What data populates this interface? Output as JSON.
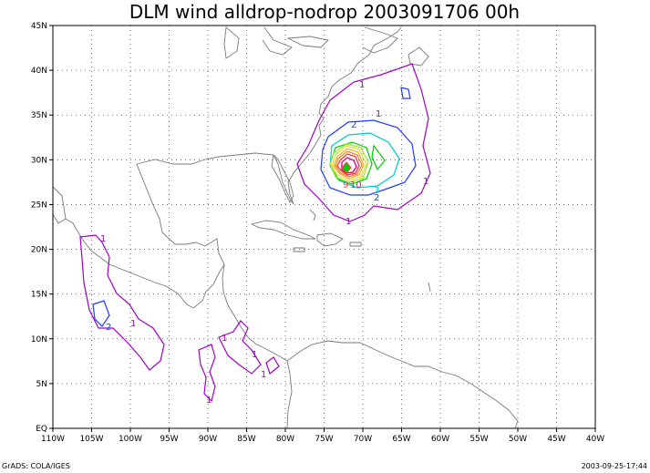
{
  "title": "DLM wind alldrop-nodrop 2003091706 00h",
  "footer_left": "GrADS: COLA/IGES",
  "footer_right": "2003-09-25-17:44",
  "map": {
    "lon_range": [
      -110,
      -40
    ],
    "lat_range": [
      0,
      45
    ],
    "x_tick_labels": [
      "110W",
      "105W",
      "100W",
      "95W",
      "90W",
      "85W",
      "80W",
      "75W",
      "70W",
      "65W",
      "60W",
      "55W",
      "50W",
      "45W",
      "40W"
    ],
    "y_tick_labels": [
      "EQ",
      "5N",
      "10N",
      "15N",
      "20N",
      "25N",
      "30N",
      "35N",
      "40N",
      "45N"
    ],
    "grid": "dotted every 5 degrees"
  },
  "contours": {
    "levels": [
      {
        "value": 1,
        "color": "#a000c8"
      },
      {
        "value": 2,
        "color": "#1e3cff"
      },
      {
        "value": 3,
        "color": "#00c8c8"
      },
      {
        "value": 4,
        "color": "#00d200"
      },
      {
        "value": 5,
        "color": "#a0e632"
      },
      {
        "value": 6,
        "color": "#e6dc32"
      },
      {
        "value": 7,
        "color": "#e6af2d"
      },
      {
        "value": 8,
        "color": "#f08228"
      },
      {
        "value": 9,
        "color": "#fa3c3c"
      },
      {
        "value": 10,
        "color": "#f00082"
      }
    ],
    "visible_labels": [
      "1",
      "1",
      "1",
      "1",
      "1",
      "1",
      "1",
      "1",
      "1",
      "1",
      "2",
      "2",
      "2",
      "3",
      "9",
      "10"
    ]
  }
}
